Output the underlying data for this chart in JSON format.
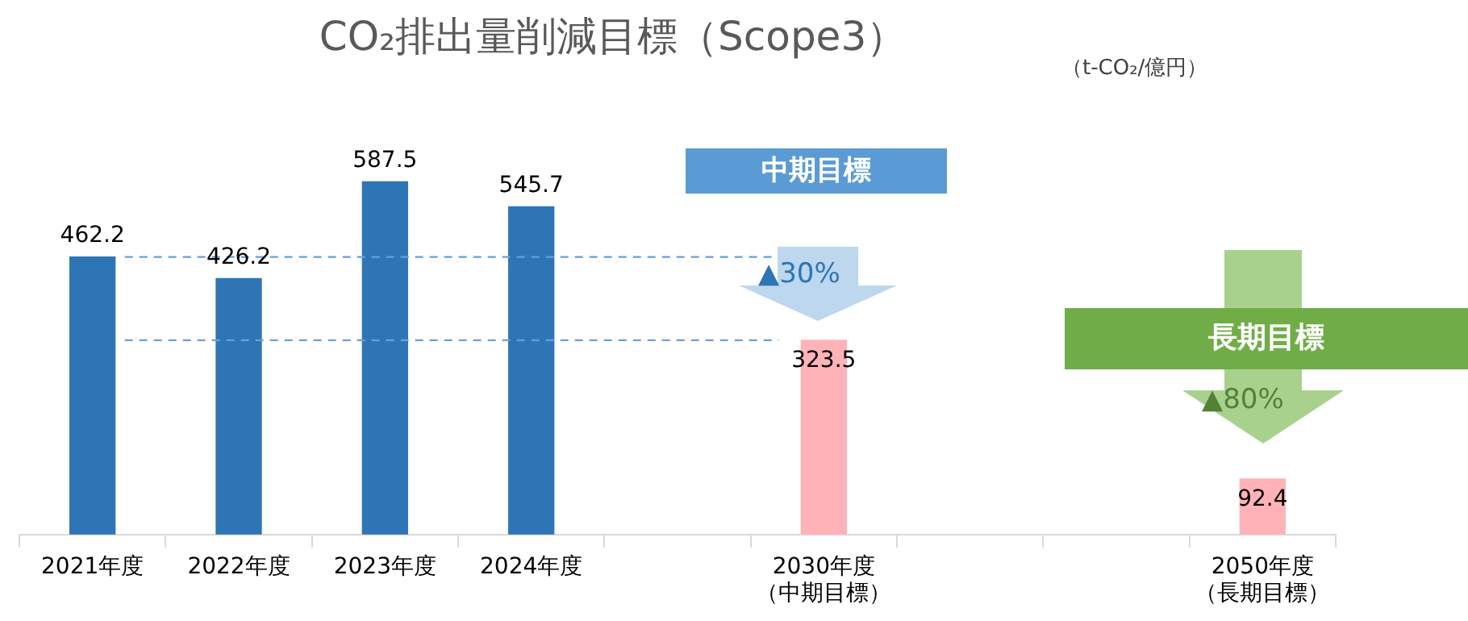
{
  "chart_data": {
    "type": "bar",
    "title": "CO₂排出量削減目標（Scope3）",
    "categories": [
      "2021年度",
      "2022年度",
      "2023年度",
      "2024年度",
      null,
      "2030年度（中期目標）",
      null,
      null,
      "2050年度（長期目標）"
    ],
    "series": [
      {
        "color": "#2e75b6",
        "values": [
          462.2,
          426.2,
          587.5,
          545.7,
          null,
          null,
          null,
          null,
          null
        ]
      },
      {
        "color": "#ffb3b8",
        "values": [
          null,
          null,
          null,
          null,
          null,
          323.5,
          null,
          null,
          92.4
        ]
      }
    ],
    "data_labels": true,
    "tick_labels": "x",
    "ref_lines": [
      {
        "axis": "y",
        "value": 462.2,
        "color": "#6a9fd8",
        "line_style": "dashed"
      },
      {
        "axis": "y",
        "value": 323.5,
        "color": "#6a9fd8",
        "line_style": "dashed"
      }
    ],
    "annotations": [
      "（t-CO₂/億円）",
      "中期目標",
      "長期目標",
      "▲30%",
      "▲80%"
    ]
  }
}
